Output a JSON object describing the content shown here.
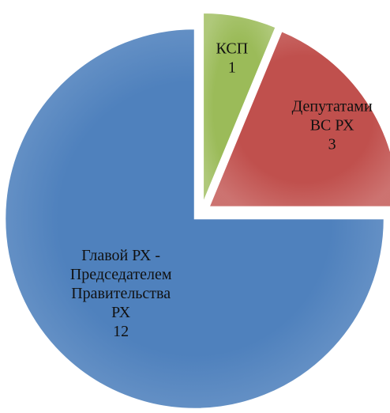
{
  "chart_data": {
    "type": "pie",
    "categories": [
      "Главой РХ -\nПредседателем\nПравительства\nРХ",
      "Депутатами\nВС РХ",
      "КСП"
    ],
    "values": [
      12,
      3,
      1
    ],
    "colors": [
      "#4f81bd",
      "#c0504d",
      "#9bbb59"
    ],
    "exploded": true
  }
}
